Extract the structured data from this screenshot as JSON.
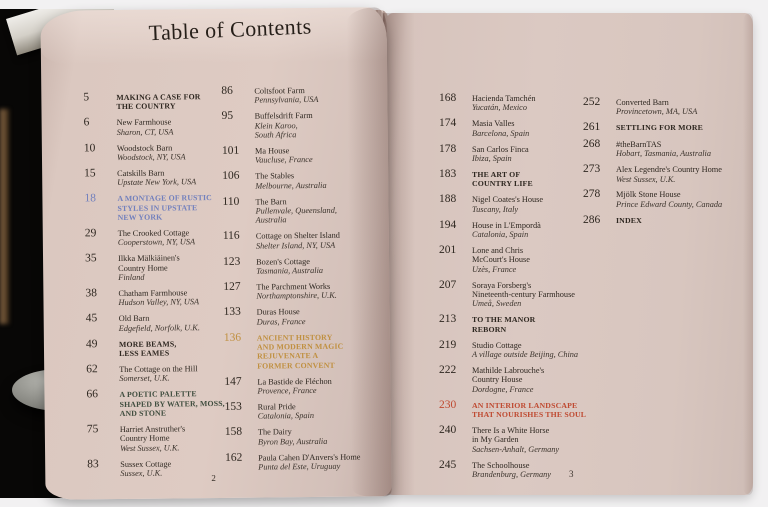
{
  "book": {
    "title": "Table of Contents",
    "left_page_number": "2",
    "right_page_number": "3",
    "colors": {
      "blue": "#7280bd",
      "gold": "#c09040",
      "red": "#bf4a31",
      "green": "#3f4d3e",
      "page": "#dbc8c0",
      "ink": "#2e2720"
    },
    "columns": [
      {
        "entries": [
          {
            "page": "5",
            "kind": "section",
            "lines": [
              "MAKING A CASE FOR",
              "THE COUNTRY"
            ]
          },
          {
            "page": "6",
            "kind": "entry",
            "title": [
              "New Farmhouse"
            ],
            "location": [
              "Sharon, CT, USA"
            ]
          },
          {
            "page": "10",
            "kind": "entry",
            "title": [
              "Woodstock Barn"
            ],
            "location": [
              "Woodstock, NY, USA"
            ]
          },
          {
            "page": "15",
            "kind": "entry",
            "title": [
              "Catskills Barn"
            ],
            "location": [
              "Upstate New York, USA"
            ]
          },
          {
            "page": "18",
            "kind": "section",
            "accent": "blue",
            "accent_number": true,
            "lines": [
              "A MONTAGE OF RUSTIC",
              "STYLES IN UPSTATE",
              "NEW YORK"
            ]
          },
          {
            "page": "29",
            "kind": "entry",
            "title": [
              "The Crooked Cottage"
            ],
            "location": [
              "Cooperstown, NY, USA"
            ]
          },
          {
            "page": "35",
            "kind": "entry",
            "title": [
              "Ilkka Mälkiäinen's",
              "Country Home"
            ],
            "location": [
              "Finland"
            ]
          },
          {
            "page": "38",
            "kind": "entry",
            "title": [
              "Chatham Farmhouse"
            ],
            "location": [
              "Hudson Valley, NY, USA"
            ]
          },
          {
            "page": "45",
            "kind": "entry",
            "title": [
              "Old Barn"
            ],
            "location": [
              "Edgefield, Norfolk, U.K."
            ]
          },
          {
            "page": "49",
            "kind": "section",
            "lines": [
              "MORE BEAMS,",
              "LESS EAMES"
            ]
          },
          {
            "page": "62",
            "kind": "entry",
            "title": [
              "The Cottage on the Hill"
            ],
            "location": [
              "Somerset, U.K."
            ]
          },
          {
            "page": "66",
            "kind": "section",
            "accent": "green",
            "accent_number": false,
            "lines": [
              "A POETIC PALETTE",
              "SHAPED BY WATER, MOSS,",
              "AND STONE"
            ]
          },
          {
            "page": "75",
            "kind": "entry",
            "title": [
              "Harriet Anstruther's",
              "Country Home"
            ],
            "location": [
              "West Sussex, U.K."
            ]
          },
          {
            "page": "83",
            "kind": "entry",
            "title": [
              "Sussex Cottage"
            ],
            "location": [
              "Sussex, U.K."
            ]
          }
        ]
      },
      {
        "entries": [
          {
            "page": "86",
            "kind": "entry",
            "title": [
              "Coltsfoot Farm"
            ],
            "location": [
              "Pennsylvania, USA"
            ]
          },
          {
            "page": "95",
            "kind": "entry",
            "title": [
              "Buffelsdrift Farm"
            ],
            "location": [
              "Klein Karoo,",
              "South Africa"
            ]
          },
          {
            "page": "101",
            "kind": "entry",
            "title": [
              "Ma House"
            ],
            "location": [
              "Vaucluse, France"
            ]
          },
          {
            "page": "106",
            "kind": "entry",
            "title": [
              "The Stables"
            ],
            "location": [
              "Melbourne, Australia"
            ]
          },
          {
            "page": "110",
            "kind": "entry",
            "title": [
              "The Barn"
            ],
            "location": [
              "Pullenvale, Queensland,",
              "Australia"
            ]
          },
          {
            "page": "116",
            "kind": "entry",
            "title": [
              "Cottage on Shelter Island"
            ],
            "location": [
              "Shelter Island, NY, USA"
            ]
          },
          {
            "page": "123",
            "kind": "entry",
            "title": [
              "Bozen's Cottage"
            ],
            "location": [
              "Tasmania, Australia"
            ]
          },
          {
            "page": "127",
            "kind": "entry",
            "title": [
              "The Parchment Works"
            ],
            "location": [
              "Northamptonshire, U.K."
            ]
          },
          {
            "page": "133",
            "kind": "entry",
            "title": [
              "Duras House"
            ],
            "location": [
              "Duras, France"
            ]
          },
          {
            "page": "136",
            "kind": "section",
            "accent": "gold",
            "accent_number": true,
            "lines": [
              "ANCIENT HISTORY",
              "AND MODERN MAGIC",
              "REJUVENATE A",
              "FORMER CONVENT"
            ]
          },
          {
            "page": "147",
            "kind": "entry",
            "title": [
              "La Bastide de Fléchon"
            ],
            "location": [
              "Provence, France"
            ]
          },
          {
            "page": "153",
            "kind": "entry",
            "title": [
              "Rural Pride"
            ],
            "location": [
              "Catalonia, Spain"
            ]
          },
          {
            "page": "158",
            "kind": "entry",
            "title": [
              "The Dairy"
            ],
            "location": [
              "Byron Bay, Australia"
            ]
          },
          {
            "page": "162",
            "kind": "entry",
            "title": [
              "Paula Cahen D'Anvers's Home"
            ],
            "location": [
              "Punta del Este, Uruguay"
            ]
          }
        ]
      },
      {
        "entries": [
          {
            "page": "168",
            "kind": "entry",
            "title": [
              "Hacienda Tamchén"
            ],
            "location": [
              "Yucatán, Mexico"
            ]
          },
          {
            "page": "174",
            "kind": "entry",
            "title": [
              "Masia Valles"
            ],
            "location": [
              "Barcelona, Spain"
            ]
          },
          {
            "page": "178",
            "kind": "entry",
            "title": [
              "San Carlos Finca"
            ],
            "location": [
              "Ibiza, Spain"
            ]
          },
          {
            "page": "183",
            "kind": "section",
            "lines": [
              "THE ART OF",
              "COUNTRY LIFE"
            ]
          },
          {
            "page": "188",
            "kind": "entry",
            "title": [
              "Nigel Coates's House"
            ],
            "location": [
              "Tuscany, Italy"
            ]
          },
          {
            "page": "194",
            "kind": "entry",
            "title": [
              "House in L'Empordà"
            ],
            "location": [
              "Catalonia, Spain"
            ]
          },
          {
            "page": "201",
            "kind": "entry",
            "title": [
              "Lone and Chris",
              "McCourt's House"
            ],
            "location": [
              "Uzès, France"
            ]
          },
          {
            "page": "207",
            "kind": "entry",
            "title": [
              "Soraya Forsberg's",
              "Nineteenth-century Farmhouse"
            ],
            "location": [
              "Umeå, Sweden"
            ]
          },
          {
            "page": "213",
            "kind": "section",
            "lines": [
              "TO THE MANOR",
              "REBORN"
            ]
          },
          {
            "page": "219",
            "kind": "entry",
            "title": [
              "Studio Cottage"
            ],
            "location": [
              "A village outside Beijing, China"
            ]
          },
          {
            "page": "222",
            "kind": "entry",
            "title": [
              "Mathilde Labrouche's",
              "Country House"
            ],
            "location": [
              "Dordogne, France"
            ]
          },
          {
            "page": "230",
            "kind": "section",
            "accent": "red",
            "accent_number": true,
            "lines": [
              "AN INTERIOR LANDSCAPE",
              "THAT NOURISHES THE SOUL"
            ]
          },
          {
            "page": "240",
            "kind": "entry",
            "title": [
              "There Is a White Horse",
              "in My Garden"
            ],
            "location": [
              "Sachsen-Anhalt, Germany"
            ]
          },
          {
            "page": "245",
            "kind": "entry",
            "title": [
              "The Schoolhouse"
            ],
            "location": [
              "Brandenburg, Germany"
            ]
          }
        ]
      },
      {
        "entries": [
          {
            "page": "252",
            "kind": "entry",
            "title": [
              "Converted Barn"
            ],
            "location": [
              "Provincetown, MA, USA"
            ]
          },
          {
            "page": "261",
            "kind": "section",
            "lines": [
              "SETTLING FOR MORE"
            ]
          },
          {
            "page": "268",
            "kind": "entry",
            "title": [
              "#theBarnTAS"
            ],
            "location": [
              "Hobart, Tasmania, Australia"
            ]
          },
          {
            "page": "273",
            "kind": "entry",
            "title": [
              "Alex Legendre's Country Home"
            ],
            "location": [
              "West Sussex, U.K."
            ]
          },
          {
            "page": "278",
            "kind": "entry",
            "title": [
              "Mjölk Stone House"
            ],
            "location": [
              "Prince Edward County, Canada"
            ]
          },
          {
            "page": "286",
            "kind": "section",
            "lines": [
              "INDEX"
            ]
          }
        ]
      }
    ]
  }
}
